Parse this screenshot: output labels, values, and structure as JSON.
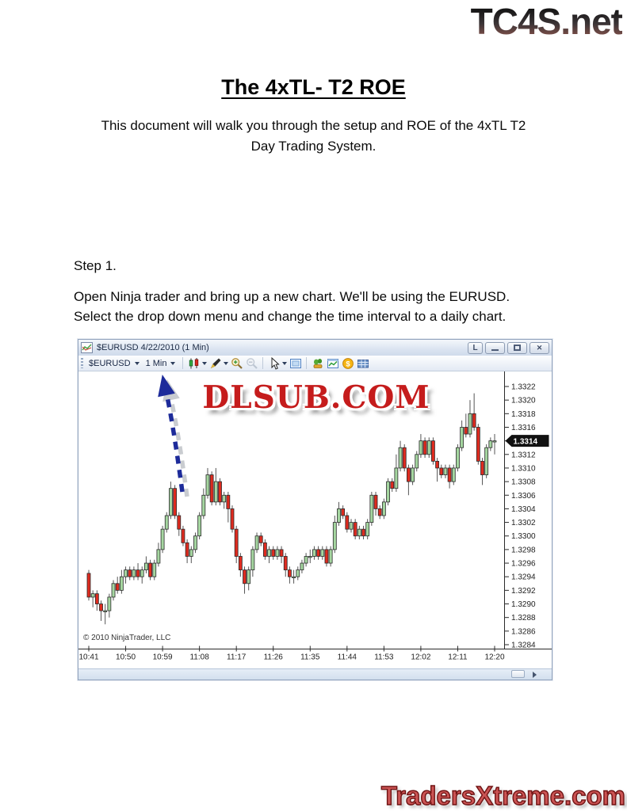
{
  "page": {
    "site_logo": "TC4S.net",
    "title": "The 4xTL- T2 ROE",
    "intro_line1": "This document will walk you through the setup and ROE of the 4xTL T2",
    "intro_line2": "Day Trading System.",
    "step_label": "Step 1.",
    "step_body_line1": "Open  Ninja trader and bring up a new chart.  We'll be using the EURUSD.",
    "step_body_line2": "Select the drop down menu and change the time interval to a daily chart.",
    "footer_logo": "TradersXtreme.com"
  },
  "chart_window": {
    "title": "$EURUSD 4/22/2010 (1 Min)",
    "buttons": {
      "link_label": "L",
      "close_glyph": "✕"
    },
    "toolbar": {
      "instrument_label": "$EURUSD",
      "interval_label": "1 Min",
      "icons": [
        "chart-style-icon",
        "drawing-tools-icon",
        "zoom-in-icon",
        "zoom-out-icon",
        "cursor-icon",
        "snapshot-icon",
        "analyzer-icon",
        "mini-chart-icon",
        "account-coin-icon",
        "data-grid-icon"
      ]
    },
    "watermark": "DLSUB.COM",
    "copyright": "© 2010 NinjaTrader, LLC"
  },
  "chart_data": {
    "type": "candlestick",
    "symbol": "EURUSD",
    "interval": "1 Min",
    "date": "4/22/2010",
    "title": "$EURUSD 4/22/2010 (1 Min)",
    "grid": false,
    "legend": "none",
    "up_color": "#a5d6a0",
    "down_color": "#df2b1f",
    "outline_color": "#2a2a2a",
    "wick_color": "#555555",
    "current_price": "1.3314",
    "current_price_value": 1.3314,
    "ylim": [
      1.3283,
      1.33235
    ],
    "y_ticks": [
      1.3322,
      1.332,
      1.3318,
      1.3316,
      1.3314,
      1.3312,
      1.331,
      1.3308,
      1.3306,
      1.3304,
      1.3302,
      1.33,
      1.3298,
      1.3296,
      1.3294,
      1.3292,
      1.329,
      1.3288,
      1.3286,
      1.3284
    ],
    "x_labels": [
      "10:41",
      "10:50",
      "10:59",
      "11:08",
      "11:17",
      "11:26",
      "11:35",
      "11:44",
      "11:53",
      "12:02",
      "12:11",
      "12:20"
    ],
    "x_label_step_candles": 9,
    "candles_ohlc": [
      [
        1.32945,
        1.3295,
        1.32905,
        1.3291
      ],
      [
        1.3291,
        1.3292,
        1.32895,
        1.32915
      ],
      [
        1.32915,
        1.3292,
        1.3289,
        1.329
      ],
      [
        1.329,
        1.32905,
        1.32875,
        1.3289
      ],
      [
        1.3289,
        1.329,
        1.3287,
        1.3289
      ],
      [
        1.3289,
        1.32915,
        1.3288,
        1.3291
      ],
      [
        1.3291,
        1.32935,
        1.32905,
        1.3293
      ],
      [
        1.3293,
        1.3294,
        1.32915,
        1.3292
      ],
      [
        1.3292,
        1.3295,
        1.32915,
        1.3294
      ],
      [
        1.3294,
        1.32955,
        1.3293,
        1.3295
      ],
      [
        1.3295,
        1.32955,
        1.32935,
        1.3294
      ],
      [
        1.3294,
        1.32955,
        1.32935,
        1.3295
      ],
      [
        1.3295,
        1.3296,
        1.32935,
        1.3294
      ],
      [
        1.3294,
        1.32955,
        1.3293,
        1.3295
      ],
      [
        1.3295,
        1.3297,
        1.32945,
        1.3296
      ],
      [
        1.3296,
        1.32965,
        1.32935,
        1.3294
      ],
      [
        1.3294,
        1.32965,
        1.32935,
        1.3296
      ],
      [
        1.3296,
        1.3299,
        1.32955,
        1.3298
      ],
      [
        1.3298,
        1.33015,
        1.32975,
        1.3301
      ],
      [
        1.3301,
        1.33035,
        1.33005,
        1.3303
      ],
      [
        1.3303,
        1.3308,
        1.33025,
        1.3307
      ],
      [
        1.3307,
        1.33075,
        1.33025,
        1.3303
      ],
      [
        1.3303,
        1.33035,
        1.33,
        1.3301
      ],
      [
        1.3301,
        1.33015,
        1.32985,
        1.3299
      ],
      [
        1.3299,
        1.32995,
        1.3296,
        1.3297
      ],
      [
        1.3297,
        1.32985,
        1.3296,
        1.3298
      ],
      [
        1.3298,
        1.33005,
        1.32975,
        1.33
      ],
      [
        1.33,
        1.33035,
        1.32995,
        1.3303
      ],
      [
        1.3303,
        1.3307,
        1.33025,
        1.3306
      ],
      [
        1.3306,
        1.331,
        1.33055,
        1.3309
      ],
      [
        1.3309,
        1.33095,
        1.33045,
        1.3305
      ],
      [
        1.3305,
        1.331,
        1.33045,
        1.3308
      ],
      [
        1.3308,
        1.33085,
        1.33045,
        1.3305
      ],
      [
        1.3305,
        1.33065,
        1.3304,
        1.3306
      ],
      [
        1.3306,
        1.33065,
        1.3302,
        1.3304
      ],
      [
        1.3304,
        1.33045,
        1.33005,
        1.3301
      ],
      [
        1.3301,
        1.33015,
        1.3296,
        1.3297
      ],
      [
        1.3297,
        1.32975,
        1.3294,
        1.3295
      ],
      [
        1.3295,
        1.32955,
        1.32915,
        1.3293
      ],
      [
        1.3293,
        1.32955,
        1.3292,
        1.3295
      ],
      [
        1.3295,
        1.32985,
        1.3294,
        1.3298
      ],
      [
        1.3298,
        1.33005,
        1.32975,
        1.33
      ],
      [
        1.33,
        1.33005,
        1.32985,
        1.3299
      ],
      [
        1.3299,
        1.32995,
        1.32965,
        1.3297
      ],
      [
        1.3297,
        1.32985,
        1.3296,
        1.3298
      ],
      [
        1.3298,
        1.32985,
        1.32965,
        1.3297
      ],
      [
        1.3297,
        1.32985,
        1.32965,
        1.3298
      ],
      [
        1.3298,
        1.32985,
        1.3296,
        1.3297
      ],
      [
        1.3297,
        1.32975,
        1.3294,
        1.3295
      ],
      [
        1.3295,
        1.32955,
        1.3293,
        1.3294
      ],
      [
        1.3294,
        1.3295,
        1.3293,
        1.3294
      ],
      [
        1.3294,
        1.32955,
        1.32935,
        1.3295
      ],
      [
        1.3295,
        1.32965,
        1.32945,
        1.3296
      ],
      [
        1.3296,
        1.32975,
        1.32955,
        1.3297
      ],
      [
        1.3297,
        1.3298,
        1.3296,
        1.3297
      ],
      [
        1.3297,
        1.32985,
        1.32965,
        1.3298
      ],
      [
        1.3298,
        1.32985,
        1.32965,
        1.3297
      ],
      [
        1.3297,
        1.32985,
        1.32965,
        1.3298
      ],
      [
        1.3298,
        1.32985,
        1.32955,
        1.3296
      ],
      [
        1.3296,
        1.32985,
        1.32955,
        1.3298
      ],
      [
        1.3298,
        1.3303,
        1.32975,
        1.3302
      ],
      [
        1.3302,
        1.3305,
        1.33015,
        1.3304
      ],
      [
        1.3304,
        1.33045,
        1.33025,
        1.3303
      ],
      [
        1.3303,
        1.33035,
        1.33005,
        1.3301
      ],
      [
        1.3301,
        1.33025,
        1.33005,
        1.3302
      ],
      [
        1.3302,
        1.33025,
        1.32995,
        1.33
      ],
      [
        1.33,
        1.33015,
        1.32995,
        1.3301
      ],
      [
        1.3301,
        1.33015,
        1.32995,
        1.33
      ],
      [
        1.33,
        1.33025,
        1.32995,
        1.3302
      ],
      [
        1.3302,
        1.33065,
        1.33015,
        1.3306
      ],
      [
        1.3306,
        1.33065,
        1.3303,
        1.3304
      ],
      [
        1.3304,
        1.33045,
        1.33025,
        1.3303
      ],
      [
        1.3303,
        1.33055,
        1.33025,
        1.3305
      ],
      [
        1.3305,
        1.33085,
        1.33045,
        1.3308
      ],
      [
        1.3308,
        1.33085,
        1.33065,
        1.3307
      ],
      [
        1.3307,
        1.3312,
        1.33065,
        1.331
      ],
      [
        1.331,
        1.3314,
        1.33095,
        1.3313
      ],
      [
        1.3313,
        1.33135,
        1.33095,
        1.331
      ],
      [
        1.331,
        1.33105,
        1.3306,
        1.3308
      ],
      [
        1.3308,
        1.33105,
        1.33075,
        1.331
      ],
      [
        1.331,
        1.33125,
        1.33095,
        1.3312
      ],
      [
        1.3312,
        1.3315,
        1.33115,
        1.3314
      ],
      [
        1.3314,
        1.33145,
        1.33115,
        1.3312
      ],
      [
        1.3312,
        1.33145,
        1.33115,
        1.3314
      ],
      [
        1.3314,
        1.33145,
        1.33105,
        1.3311
      ],
      [
        1.3311,
        1.33115,
        1.3308,
        1.331
      ],
      [
        1.331,
        1.33105,
        1.33085,
        1.3309
      ],
      [
        1.3309,
        1.33105,
        1.33085,
        1.331
      ],
      [
        1.331,
        1.33105,
        1.3307,
        1.3308
      ],
      [
        1.3308,
        1.33105,
        1.33075,
        1.331
      ],
      [
        1.331,
        1.33135,
        1.33095,
        1.3313
      ],
      [
        1.3313,
        1.3317,
        1.33125,
        1.3316
      ],
      [
        1.3316,
        1.3318,
        1.33145,
        1.3315
      ],
      [
        1.3315,
        1.332,
        1.33145,
        1.3318
      ],
      [
        1.3318,
        1.3321,
        1.33155,
        1.3316
      ],
      [
        1.3316,
        1.33165,
        1.33105,
        1.3311
      ],
      [
        1.3311,
        1.33115,
        1.33075,
        1.3309
      ],
      [
        1.3309,
        1.33135,
        1.33085,
        1.3313
      ],
      [
        1.3313,
        1.33145,
        1.33125,
        1.3314
      ],
      [
        1.3314,
        1.3315,
        1.3312,
        1.3314
      ]
    ]
  }
}
